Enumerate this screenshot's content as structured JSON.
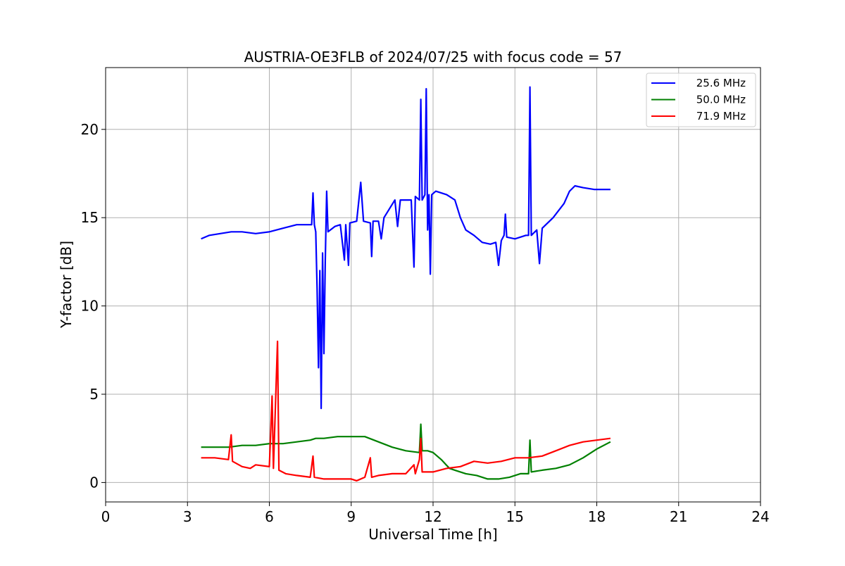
{
  "chart_data": {
    "type": "line",
    "title": "AUSTRIA-OE3FLB of 2024/07/25 with focus code = 57",
    "xlabel": "Universal Time [h]",
    "ylabel": "Y-factor [dB]",
    "xlim": [
      0,
      24
    ],
    "ylim": [
      -1.1,
      23.5
    ],
    "x_ticks": [
      "0",
      "3",
      "6",
      "9",
      "12",
      "15",
      "18",
      "21",
      "24"
    ],
    "y_ticks": [
      "0",
      "5",
      "10",
      "15",
      "20"
    ],
    "grid": true,
    "legend_position": "top-right",
    "series": [
      {
        "name": "25.6 MHz",
        "color": "#0000ff",
        "points": [
          [
            3.5,
            13.8
          ],
          [
            3.8,
            14.0
          ],
          [
            4.2,
            14.1
          ],
          [
            4.6,
            14.2
          ],
          [
            5.0,
            14.2
          ],
          [
            5.5,
            14.1
          ],
          [
            6.0,
            14.2
          ],
          [
            6.5,
            14.4
          ],
          [
            7.0,
            14.6
          ],
          [
            7.4,
            14.6
          ],
          [
            7.55,
            14.6
          ],
          [
            7.6,
            16.4
          ],
          [
            7.65,
            14.6
          ],
          [
            7.7,
            14.2
          ],
          [
            7.75,
            11.0
          ],
          [
            7.8,
            6.5
          ],
          [
            7.85,
            12.0
          ],
          [
            7.9,
            4.2
          ],
          [
            7.95,
            13.0
          ],
          [
            8.0,
            7.3
          ],
          [
            8.05,
            12.5
          ],
          [
            8.1,
            16.5
          ],
          [
            8.15,
            14.2
          ],
          [
            8.4,
            14.5
          ],
          [
            8.6,
            14.6
          ],
          [
            8.75,
            12.6
          ],
          [
            8.8,
            14.6
          ],
          [
            8.9,
            12.3
          ],
          [
            8.95,
            14.7
          ],
          [
            9.2,
            14.8
          ],
          [
            9.35,
            17.0
          ],
          [
            9.45,
            14.8
          ],
          [
            9.7,
            14.7
          ],
          [
            9.75,
            12.8
          ],
          [
            9.8,
            14.8
          ],
          [
            10.0,
            14.8
          ],
          [
            10.1,
            13.8
          ],
          [
            10.2,
            15.0
          ],
          [
            10.4,
            15.5
          ],
          [
            10.6,
            16.0
          ],
          [
            10.7,
            14.5
          ],
          [
            10.8,
            16.0
          ],
          [
            11.0,
            16.0
          ],
          [
            11.2,
            16.0
          ],
          [
            11.3,
            12.2
          ],
          [
            11.35,
            16.2
          ],
          [
            11.5,
            16.0
          ],
          [
            11.55,
            21.7
          ],
          [
            11.6,
            16.0
          ],
          [
            11.7,
            16.3
          ],
          [
            11.75,
            22.3
          ],
          [
            11.8,
            14.3
          ],
          [
            11.85,
            16.3
          ],
          [
            11.9,
            11.8
          ],
          [
            11.95,
            16.3
          ],
          [
            12.1,
            16.5
          ],
          [
            12.5,
            16.3
          ],
          [
            12.8,
            16.0
          ],
          [
            13.0,
            15.0
          ],
          [
            13.2,
            14.3
          ],
          [
            13.5,
            14.0
          ],
          [
            13.8,
            13.6
          ],
          [
            14.1,
            13.5
          ],
          [
            14.3,
            13.6
          ],
          [
            14.4,
            12.3
          ],
          [
            14.5,
            13.7
          ],
          [
            14.6,
            14.0
          ],
          [
            14.65,
            15.2
          ],
          [
            14.7,
            13.9
          ],
          [
            15.0,
            13.8
          ],
          [
            15.4,
            14.0
          ],
          [
            15.5,
            14.0
          ],
          [
            15.55,
            22.4
          ],
          [
            15.6,
            14.0
          ],
          [
            15.8,
            14.3
          ],
          [
            15.9,
            12.4
          ],
          [
            16.0,
            14.4
          ],
          [
            16.4,
            15.0
          ],
          [
            16.8,
            15.8
          ],
          [
            17.0,
            16.5
          ],
          [
            17.2,
            16.8
          ],
          [
            17.5,
            16.7
          ],
          [
            17.9,
            16.6
          ],
          [
            18.2,
            16.6
          ],
          [
            18.5,
            16.6
          ]
        ]
      },
      {
        "name": "50.0 MHz",
        "color": "#008000",
        "points": [
          [
            3.5,
            2.0
          ],
          [
            4.0,
            2.0
          ],
          [
            4.5,
            2.0
          ],
          [
            5.0,
            2.1
          ],
          [
            5.5,
            2.1
          ],
          [
            6.0,
            2.2
          ],
          [
            6.5,
            2.2
          ],
          [
            7.0,
            2.3
          ],
          [
            7.5,
            2.4
          ],
          [
            7.7,
            2.5
          ],
          [
            8.0,
            2.5
          ],
          [
            8.5,
            2.6
          ],
          [
            9.0,
            2.6
          ],
          [
            9.5,
            2.6
          ],
          [
            10.0,
            2.3
          ],
          [
            10.5,
            2.0
          ],
          [
            11.0,
            1.8
          ],
          [
            11.5,
            1.7
          ],
          [
            11.55,
            3.3
          ],
          [
            11.6,
            1.8
          ],
          [
            11.8,
            1.8
          ],
          [
            12.0,
            1.7
          ],
          [
            12.3,
            1.3
          ],
          [
            12.6,
            0.8
          ],
          [
            12.8,
            0.7
          ],
          [
            13.2,
            0.5
          ],
          [
            13.6,
            0.4
          ],
          [
            14.0,
            0.2
          ],
          [
            14.4,
            0.2
          ],
          [
            14.8,
            0.3
          ],
          [
            15.2,
            0.5
          ],
          [
            15.5,
            0.5
          ],
          [
            15.55,
            2.4
          ],
          [
            15.6,
            0.6
          ],
          [
            16.0,
            0.7
          ],
          [
            16.5,
            0.8
          ],
          [
            17.0,
            1.0
          ],
          [
            17.5,
            1.4
          ],
          [
            18.0,
            1.9
          ],
          [
            18.5,
            2.3
          ]
        ]
      },
      {
        "name": "71.9 MHz",
        "color": "#ff0000",
        "points": [
          [
            3.5,
            1.4
          ],
          [
            4.0,
            1.4
          ],
          [
            4.5,
            1.3
          ],
          [
            4.6,
            2.7
          ],
          [
            4.65,
            1.2
          ],
          [
            5.0,
            0.9
          ],
          [
            5.3,
            0.8
          ],
          [
            5.5,
            1.0
          ],
          [
            6.0,
            0.9
          ],
          [
            6.1,
            4.9
          ],
          [
            6.15,
            0.8
          ],
          [
            6.3,
            8.0
          ],
          [
            6.35,
            0.7
          ],
          [
            6.6,
            0.5
          ],
          [
            7.0,
            0.4
          ],
          [
            7.5,
            0.3
          ],
          [
            7.6,
            1.5
          ],
          [
            7.65,
            0.3
          ],
          [
            8.0,
            0.2
          ],
          [
            8.5,
            0.2
          ],
          [
            9.0,
            0.2
          ],
          [
            9.2,
            0.1
          ],
          [
            9.5,
            0.3
          ],
          [
            9.7,
            1.4
          ],
          [
            9.75,
            0.3
          ],
          [
            10.0,
            0.4
          ],
          [
            10.5,
            0.5
          ],
          [
            11.0,
            0.5
          ],
          [
            11.3,
            1.0
          ],
          [
            11.35,
            0.5
          ],
          [
            11.5,
            1.3
          ],
          [
            11.55,
            2.5
          ],
          [
            11.6,
            0.6
          ],
          [
            12.0,
            0.6
          ],
          [
            12.5,
            0.8
          ],
          [
            13.0,
            0.9
          ],
          [
            13.5,
            1.2
          ],
          [
            14.0,
            1.1
          ],
          [
            14.5,
            1.2
          ],
          [
            15.0,
            1.4
          ],
          [
            15.5,
            1.4
          ],
          [
            16.0,
            1.5
          ],
          [
            16.5,
            1.8
          ],
          [
            17.0,
            2.1
          ],
          [
            17.5,
            2.3
          ],
          [
            18.0,
            2.4
          ],
          [
            18.5,
            2.5
          ]
        ]
      }
    ]
  }
}
